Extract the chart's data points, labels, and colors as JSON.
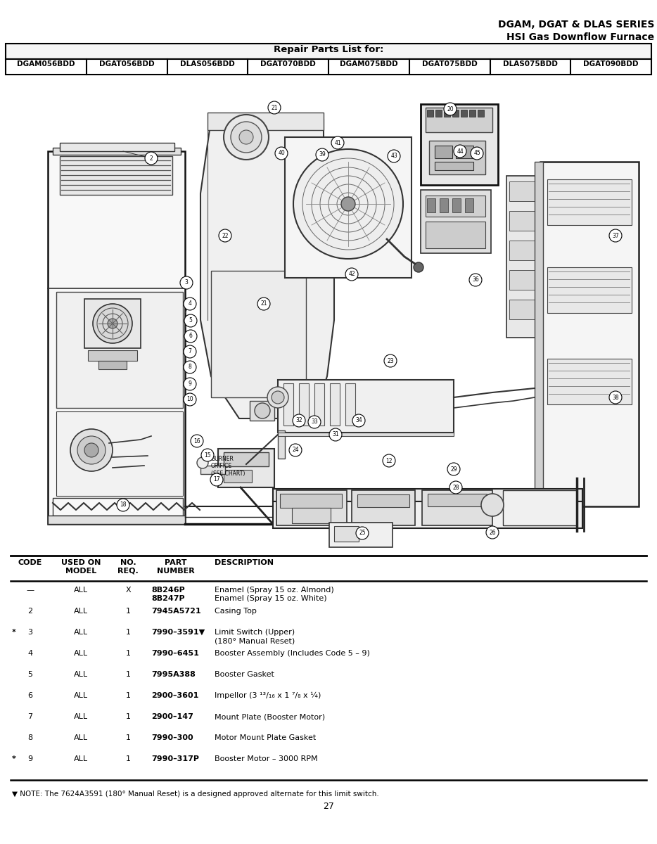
{
  "title_line1": "DGAM, DGAT & DLAS SERIES",
  "title_line2": "HSI Gas Downflow Furnace",
  "repair_parts_header": "Repair Parts List for:",
  "model_numbers": [
    "DGAM056BDD",
    "DGAT056BDD",
    "DLAS056BDD",
    "DGAT070BDD",
    "DGAM075BDD",
    "DGAT075BDD",
    "DLAS075BDD",
    "DGAT090BDD"
  ],
  "note_text": "▼ NOTE: The 7624A3591 (180° Manual Reset) is a designed approved alternate for this limit switch.",
  "page_number": "27",
  "bg_color": "#ffffff"
}
